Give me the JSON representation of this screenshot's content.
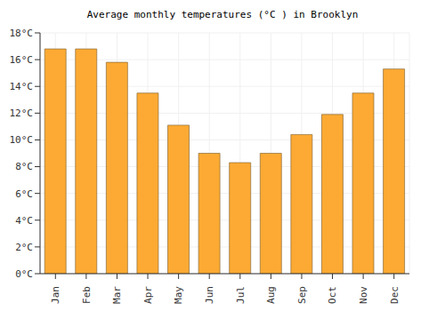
{
  "chart_data": {
    "type": "bar",
    "title": "Average monthly temperatures (°C ) in Brooklyn",
    "categories": [
      "Jan",
      "Feb",
      "Mar",
      "Apr",
      "May",
      "Jun",
      "Jul",
      "Aug",
      "Sep",
      "Oct",
      "Nov",
      "Dec"
    ],
    "values": [
      16.8,
      16.8,
      15.8,
      13.5,
      11.1,
      9.0,
      8.3,
      9.0,
      10.4,
      11.9,
      13.5,
      15.3
    ],
    "color": "#fcaa33",
    "ylim": [
      0,
      18
    ],
    "yticks": [
      {
        "value": 0,
        "label": "0°C"
      },
      {
        "value": 2,
        "label": "2°C"
      },
      {
        "value": 4,
        "label": "4°C"
      },
      {
        "value": 6,
        "label": "6°C"
      },
      {
        "value": 8,
        "label": "8°C"
      },
      {
        "value": 10,
        "label": "10°C"
      },
      {
        "value": 12,
        "label": "12°C"
      },
      {
        "value": 14,
        "label": "14°C"
      },
      {
        "value": 16,
        "label": "16°C"
      },
      {
        "value": 18,
        "label": "18°C"
      }
    ],
    "grid": true
  }
}
